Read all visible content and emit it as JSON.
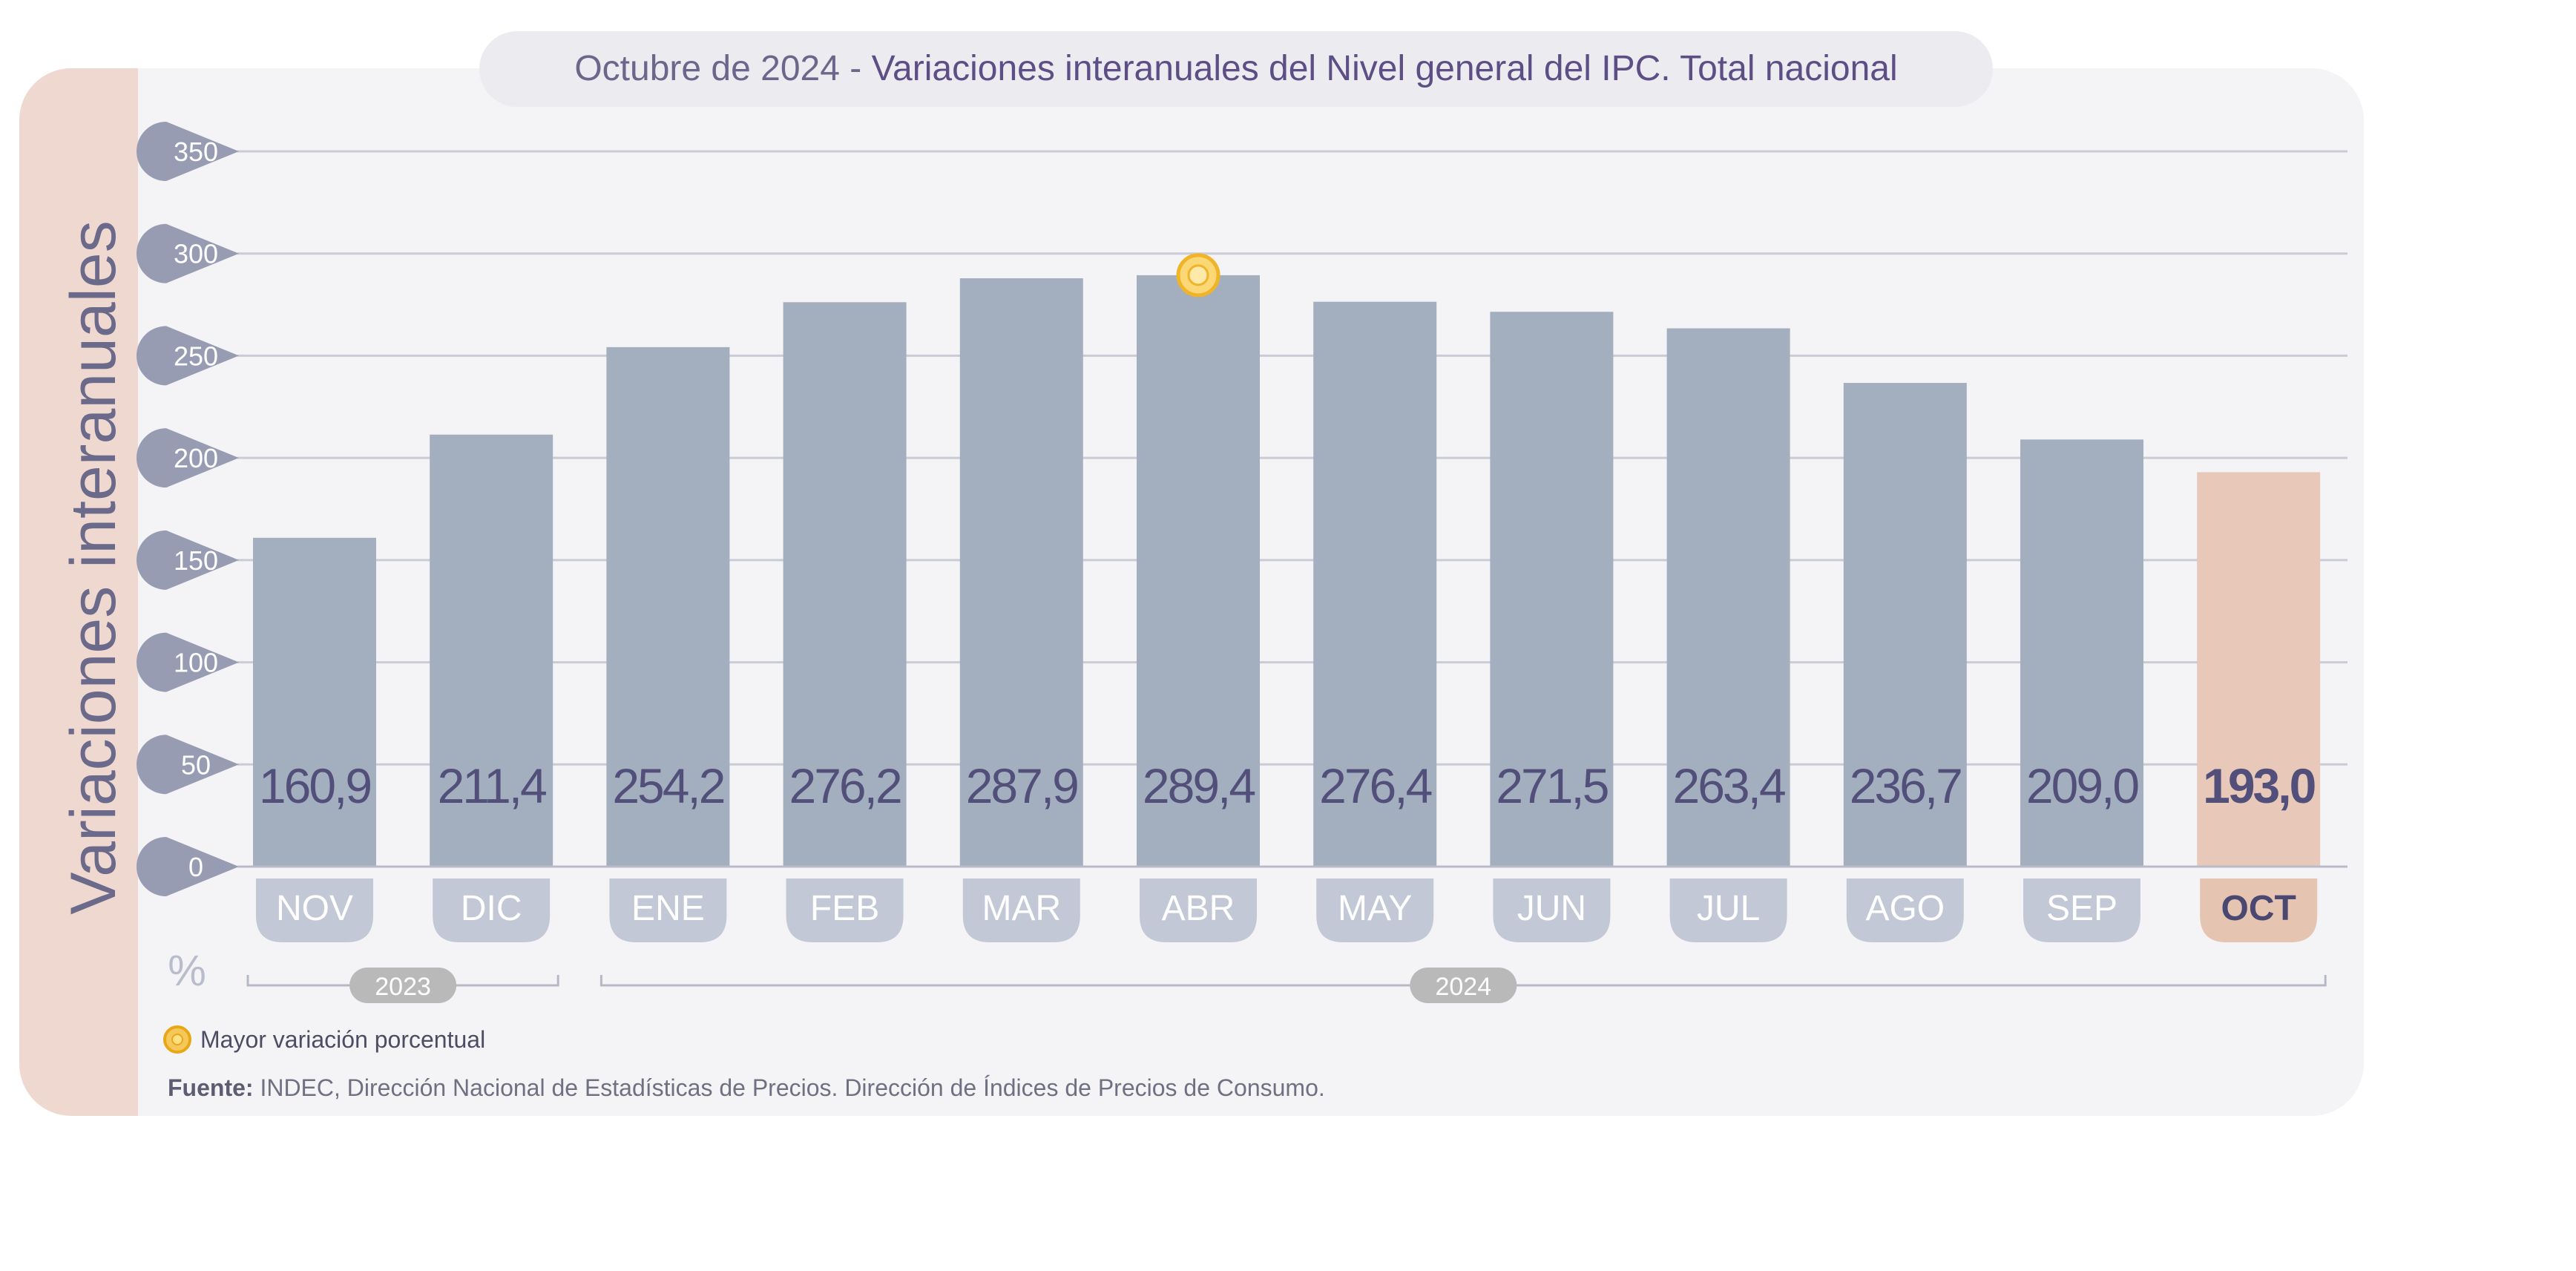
{
  "title_prefix": "Octubre de 2024 -",
  "title_main": "Variaciones interanuales del Nivel general del IPC. Total nacional",
  "y_axis_side_label": "Variaciones interanuales",
  "unit_label": "%",
  "legend_label": "Mayor variación porcentual",
  "source_label": "Fuente:",
  "source_text": "INDEC, Dirección Nacional de Estadísticas de Precios. Dirección de Índices de Precios de Consumo.",
  "colors": {
    "bar": "#a3afbe",
    "highlight_bar": "#e8c8b8",
    "value_text": "#52507a",
    "month_pill": "#c3c8d6",
    "highlight_pill": "#e6c4b2",
    "y_badge": "#989cb3",
    "marker": "#f0b429"
  },
  "chart_data": {
    "type": "bar",
    "categories": [
      "NOV",
      "DIC",
      "ENE",
      "FEB",
      "MAR",
      "ABR",
      "MAY",
      "JUN",
      "JUL",
      "AGO",
      "SEP",
      "OCT"
    ],
    "values": [
      160.9,
      211.4,
      254.2,
      276.2,
      287.9,
      289.4,
      276.4,
      271.5,
      263.4,
      236.7,
      209.0,
      193.0
    ],
    "value_labels": [
      "160,9",
      "211,4",
      "254,2",
      "276,2",
      "287,9",
      "289,4",
      "276,4",
      "271,5",
      "263,4",
      "236,7",
      "209,0",
      "193,0"
    ],
    "highlighted_category": "OCT",
    "max_marker_category": "ABR",
    "year_groups": [
      {
        "label": "2023",
        "categories": [
          "NOV",
          "DIC"
        ]
      },
      {
        "label": "2024",
        "categories": [
          "ENE",
          "FEB",
          "MAR",
          "ABR",
          "MAY",
          "JUN",
          "JUL",
          "AGO",
          "SEP",
          "OCT"
        ]
      }
    ],
    "yticks": [
      0,
      50,
      100,
      150,
      200,
      250,
      300,
      350
    ],
    "ylim": [
      0,
      350
    ],
    "grid": true,
    "legend_position": "bottom-left"
  }
}
